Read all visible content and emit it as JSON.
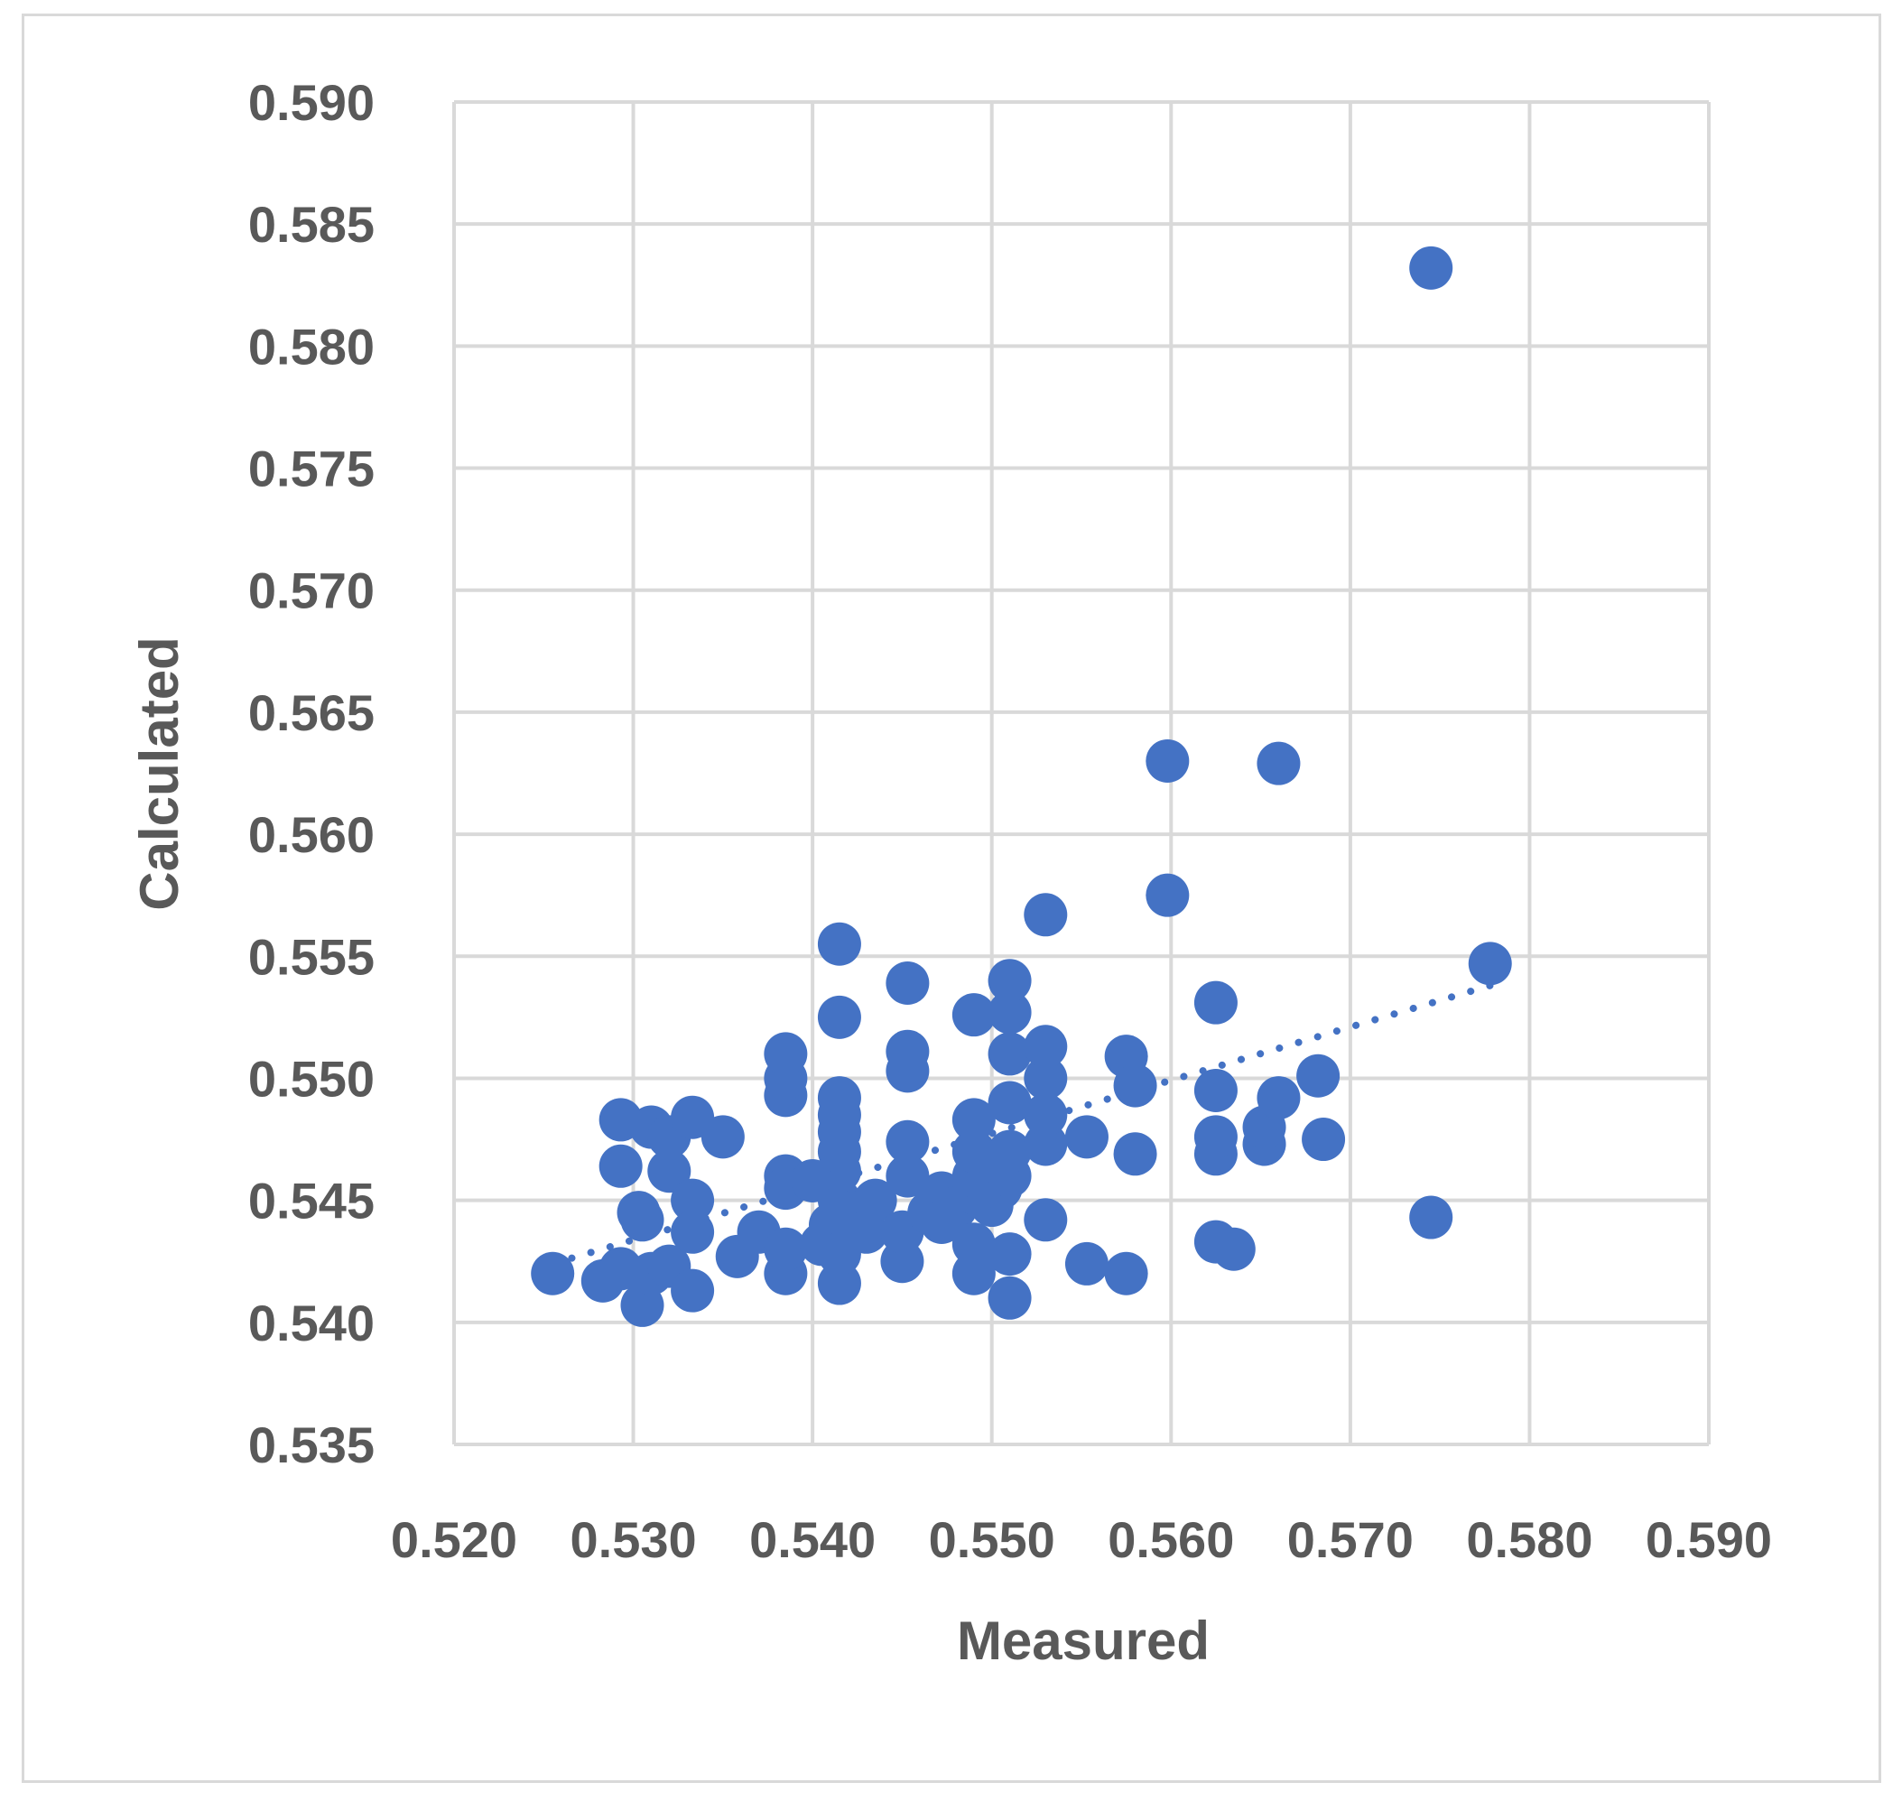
{
  "chart_data": {
    "type": "scatter",
    "xlabel": "Measured",
    "ylabel": "Calculated",
    "xlim": [
      0.52,
      0.59
    ],
    "ylim": [
      0.535,
      0.59
    ],
    "x_ticks": [
      "0.520",
      "0.530",
      "0.540",
      "0.550",
      "0.560",
      "0.570",
      "0.580",
      "0.590"
    ],
    "y_ticks": [
      "0.535",
      "0.540",
      "0.545",
      "0.550",
      "0.555",
      "0.560",
      "0.565",
      "0.570",
      "0.575",
      "0.580",
      "0.585",
      "0.590"
    ],
    "grid": true,
    "legend": "none",
    "marker_color": "#4472c4",
    "trendline": {
      "type": "linear",
      "style": "dotted",
      "color": "#4472c4",
      "x_range": [
        0.5255,
        0.5778
      ],
      "y_range": [
        0.5424,
        0.5538
      ]
    },
    "series": [
      {
        "points": [
          [
            0.5255,
            0.542
          ],
          [
            0.5283,
            0.5417
          ],
          [
            0.5293,
            0.5422
          ],
          [
            0.5305,
            0.5407
          ],
          [
            0.531,
            0.542
          ],
          [
            0.532,
            0.5423
          ],
          [
            0.5333,
            0.5413
          ],
          [
            0.5293,
            0.5464
          ],
          [
            0.5303,
            0.5445
          ],
          [
            0.5305,
            0.5442
          ],
          [
            0.532,
            0.5462
          ],
          [
            0.5333,
            0.545
          ],
          [
            0.5333,
            0.5437
          ],
          [
            0.5293,
            0.5483
          ],
          [
            0.531,
            0.548
          ],
          [
            0.532,
            0.5476
          ],
          [
            0.5333,
            0.5484
          ],
          [
            0.535,
            0.5476
          ],
          [
            0.5358,
            0.5427
          ],
          [
            0.537,
            0.5437
          ],
          [
            0.5385,
            0.542
          ],
          [
            0.5385,
            0.543
          ],
          [
            0.5385,
            0.546
          ],
          [
            0.5385,
            0.5455
          ],
          [
            0.5385,
            0.5493
          ],
          [
            0.5385,
            0.55
          ],
          [
            0.5385,
            0.551
          ],
          [
            0.54,
            0.5458
          ],
          [
            0.5405,
            0.5432
          ],
          [
            0.541,
            0.544
          ],
          [
            0.5415,
            0.545
          ],
          [
            0.5415,
            0.5416
          ],
          [
            0.5415,
            0.5428
          ],
          [
            0.5415,
            0.5462
          ],
          [
            0.5415,
            0.547
          ],
          [
            0.5415,
            0.5478
          ],
          [
            0.5415,
            0.5485
          ],
          [
            0.5415,
            0.5492
          ],
          [
            0.5415,
            0.5525
          ],
          [
            0.5415,
            0.5555
          ],
          [
            0.5425,
            0.5445
          ],
          [
            0.543,
            0.5437
          ],
          [
            0.5435,
            0.545
          ],
          [
            0.545,
            0.5425
          ],
          [
            0.545,
            0.5437
          ],
          [
            0.5453,
            0.546
          ],
          [
            0.5453,
            0.5474
          ],
          [
            0.5453,
            0.5503
          ],
          [
            0.5453,
            0.5511
          ],
          [
            0.5453,
            0.5539
          ],
          [
            0.5465,
            0.5445
          ],
          [
            0.5472,
            0.5453
          ],
          [
            0.5472,
            0.5441
          ],
          [
            0.548,
            0.5447
          ],
          [
            0.549,
            0.542
          ],
          [
            0.549,
            0.5432
          ],
          [
            0.549,
            0.5453
          ],
          [
            0.549,
            0.546
          ],
          [
            0.549,
            0.547
          ],
          [
            0.549,
            0.5483
          ],
          [
            0.549,
            0.5526
          ],
          [
            0.55,
            0.5448
          ],
          [
            0.5505,
            0.5455
          ],
          [
            0.5505,
            0.5465
          ],
          [
            0.551,
            0.541
          ],
          [
            0.551,
            0.5428
          ],
          [
            0.551,
            0.546
          ],
          [
            0.551,
            0.547
          ],
          [
            0.551,
            0.549
          ],
          [
            0.551,
            0.551
          ],
          [
            0.551,
            0.5527
          ],
          [
            0.551,
            0.554
          ],
          [
            0.553,
            0.5442
          ],
          [
            0.553,
            0.5473
          ],
          [
            0.553,
            0.5485
          ],
          [
            0.553,
            0.55
          ],
          [
            0.553,
            0.5513
          ],
          [
            0.553,
            0.5567
          ],
          [
            0.5553,
            0.5476
          ],
          [
            0.5553,
            0.5424
          ],
          [
            0.5575,
            0.542
          ],
          [
            0.5575,
            0.5509
          ],
          [
            0.558,
            0.5497
          ],
          [
            0.558,
            0.5469
          ],
          [
            0.5598,
            0.5575
          ],
          [
            0.5598,
            0.563
          ],
          [
            0.5625,
            0.5433
          ],
          [
            0.5625,
            0.5469
          ],
          [
            0.5625,
            0.5476
          ],
          [
            0.5625,
            0.5495
          ],
          [
            0.5625,
            0.5531
          ],
          [
            0.5635,
            0.543
          ],
          [
            0.5652,
            0.5473
          ],
          [
            0.5652,
            0.548
          ],
          [
            0.566,
            0.5492
          ],
          [
            0.566,
            0.5629
          ],
          [
            0.5682,
            0.5501
          ],
          [
            0.5685,
            0.5475
          ],
          [
            0.5745,
            0.5443
          ],
          [
            0.5745,
            0.5832
          ],
          [
            0.5778,
            0.5547
          ]
        ]
      }
    ]
  }
}
